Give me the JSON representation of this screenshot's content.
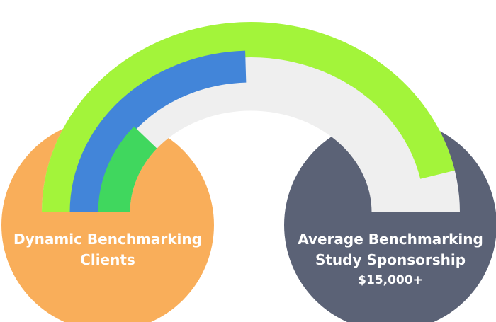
{
  "left_circle": {
    "line1": "Dynamic Benchmarking",
    "line2": "Clients"
  },
  "right_circle": {
    "line1": "Average Benchmarking",
    "line2": "Study Sponsorship",
    "line3": "$15,000+"
  },
  "arcs": [
    {
      "name": "outer-arc",
      "filled_fraction": 0.93
    },
    {
      "name": "middle-arc",
      "filled_fraction": 0.49
    },
    {
      "name": "inner-arc",
      "filled_fraction": 0.22
    }
  ],
  "colors": {
    "left_circle": "#F9AE5A",
    "right_circle": "#5B6276",
    "outer_arc": "#A3F43A",
    "middle_arc": "#4285D9",
    "inner_arc": "#40D75E",
    "arc_track": "#EFEFEF",
    "text": "#FFFFFF"
  }
}
